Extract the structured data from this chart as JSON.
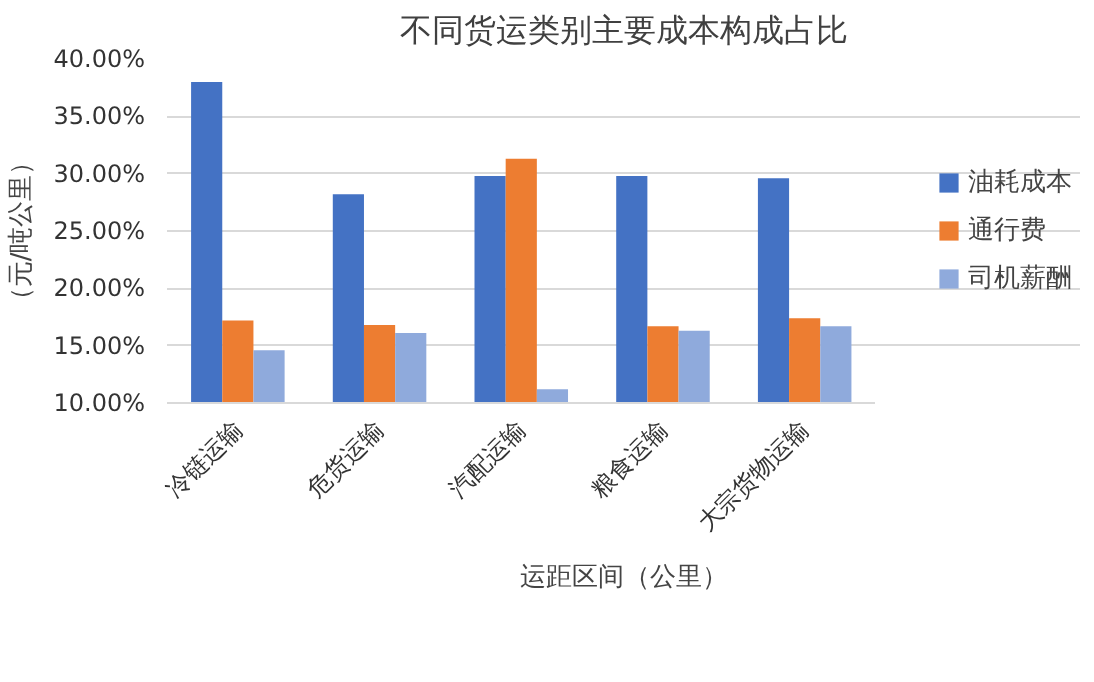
{
  "chart_data": {
    "type": "bar",
    "title": "不同货运类别主要成本构成占比",
    "xlabel": "运距区间（公里）",
    "ylabel": "（元/吨公里）",
    "categories": [
      "冷链运输",
      "危货运输",
      "汽配运输",
      "粮食运输",
      "大宗货物运输"
    ],
    "series": [
      {
        "name": "油耗成本",
        "color": "#4472c4",
        "values": [
          38.0,
          28.2,
          29.8,
          29.8,
          29.6
        ]
      },
      {
        "name": "通行费",
        "color": "#ed7d31",
        "values": [
          17.2,
          16.8,
          31.3,
          16.7,
          17.4
        ]
      },
      {
        "name": "司机薪酬",
        "color": "#8faadc",
        "values": [
          14.6,
          16.1,
          11.2,
          16.3,
          16.7
        ]
      }
    ],
    "ylim": [
      10,
      40
    ],
    "yticks": [
      {
        "value": 10,
        "label": "10.00%"
      },
      {
        "value": 15,
        "label": "15.00%"
      },
      {
        "value": 20,
        "label": "20.00%"
      },
      {
        "value": 25,
        "label": "25.00%"
      },
      {
        "value": 30,
        "label": "30.00%"
      },
      {
        "value": 35,
        "label": "35.00%"
      },
      {
        "value": 40,
        "label": "40.00%"
      }
    ],
    "grid": "y",
    "legend": "right"
  }
}
